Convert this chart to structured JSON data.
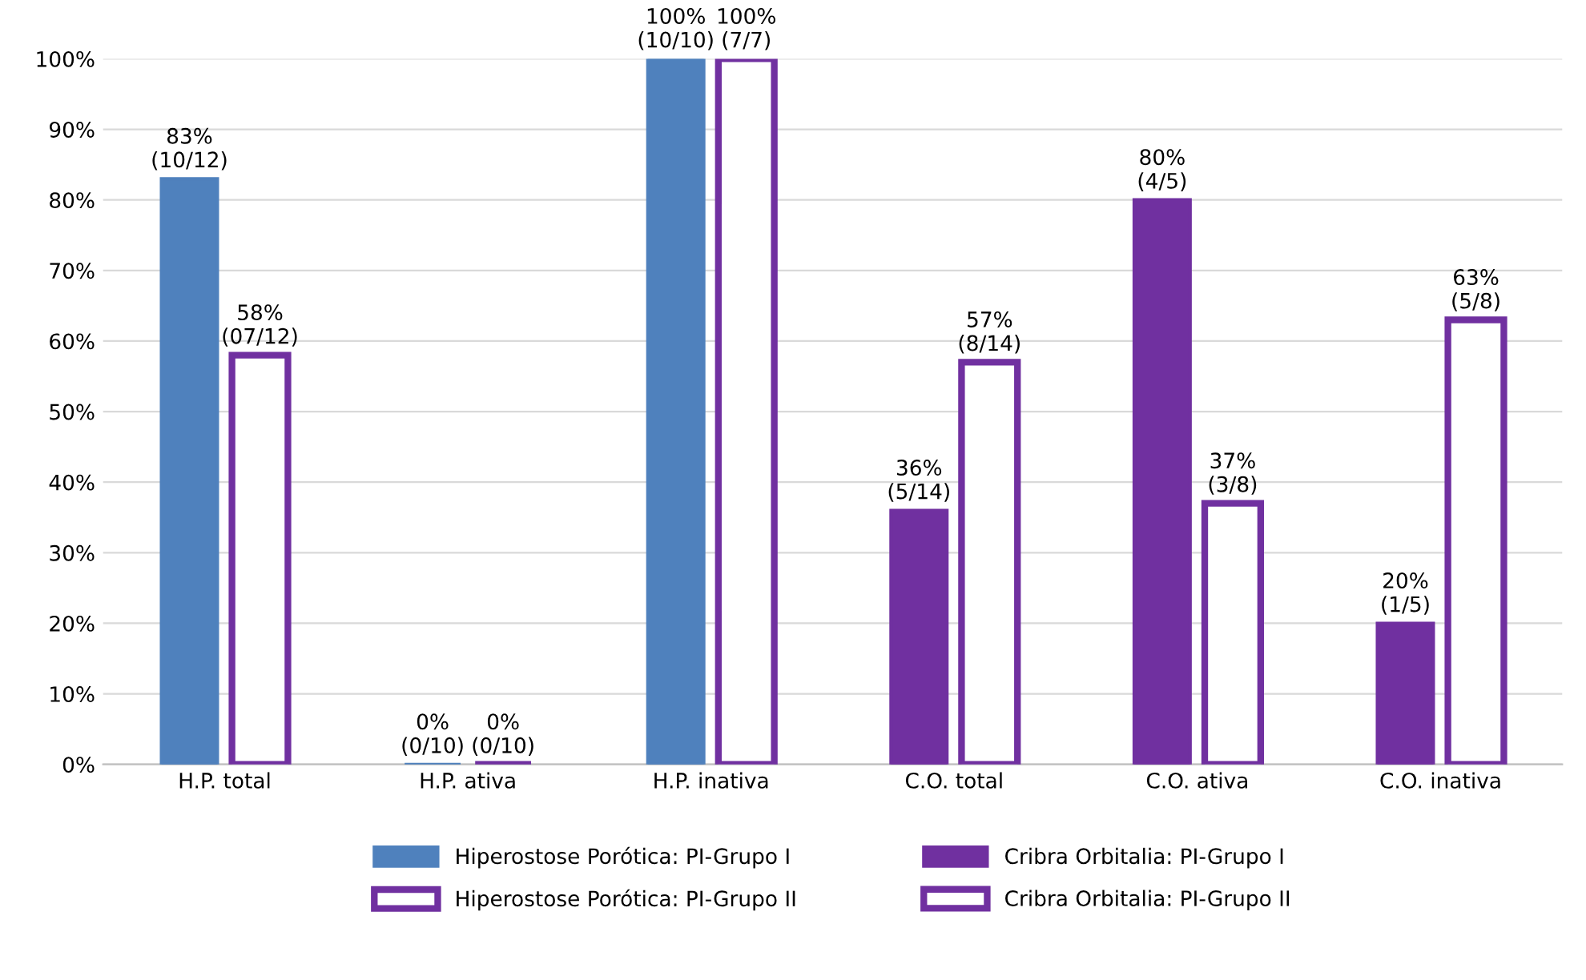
{
  "chart_data": {
    "type": "bar",
    "categories": [
      "H.P. total",
      "H.P. ativa",
      "H.P. inativa",
      "C.O. total",
      "C.O. ativa",
      "C.O. inativa"
    ],
    "series": [
      {
        "name": "Hiperostose Porótica: PI-Grupo I",
        "color": "#4f81bd",
        "values": [
          83,
          0,
          100,
          null,
          null,
          null
        ],
        "value_labels": [
          "83%\n(10/12)",
          "0%\n(0/10)",
          "100%\n(10/10)",
          null,
          null,
          null
        ]
      },
      {
        "name": "Hiperostose Porótica: PI-Grupo II",
        "color": "#7030a0",
        "values": [
          58,
          0,
          100,
          null,
          null,
          null
        ],
        "value_labels": [
          "58%\n(07/12)",
          "0%\n(0/10)",
          "100%\n(7/7)",
          null,
          null,
          null
        ]
      },
      {
        "name": "Cribra Orbitalia: PI-Grupo I",
        "color": "#7030a0",
        "values": [
          null,
          null,
          null,
          36,
          80,
          20
        ],
        "value_labels": [
          null,
          null,
          null,
          "36%\n(5/14)",
          "80%\n(4/5)",
          "20%\n(1/5)"
        ]
      },
      {
        "name": "Cribra Orbitalia: PI-Grupo II",
        "color": "#7030a0",
        "values": [
          null,
          null,
          null,
          57,
          37,
          63
        ],
        "value_labels": [
          null,
          null,
          null,
          "57%\n(8/14)",
          "37%\n(3/8)",
          "63%\n(5/8)"
        ]
      }
    ],
    "ylim": [
      0,
      100
    ],
    "yticks": [
      {
        "value": 0,
        "label": "0%"
      },
      {
        "value": 10,
        "label": "10%"
      },
      {
        "value": 20,
        "label": "20%"
      },
      {
        "value": 30,
        "label": "30%"
      },
      {
        "value": 40,
        "label": "40%"
      },
      {
        "value": 50,
        "label": "50%"
      },
      {
        "value": 60,
        "label": "60%"
      },
      {
        "value": 70,
        "label": "70%"
      },
      {
        "value": 80,
        "label": "80%"
      },
      {
        "value": 90,
        "label": "90%"
      },
      {
        "value": 100,
        "label": "100%"
      }
    ],
    "grid": "y",
    "legend": "bottom"
  }
}
